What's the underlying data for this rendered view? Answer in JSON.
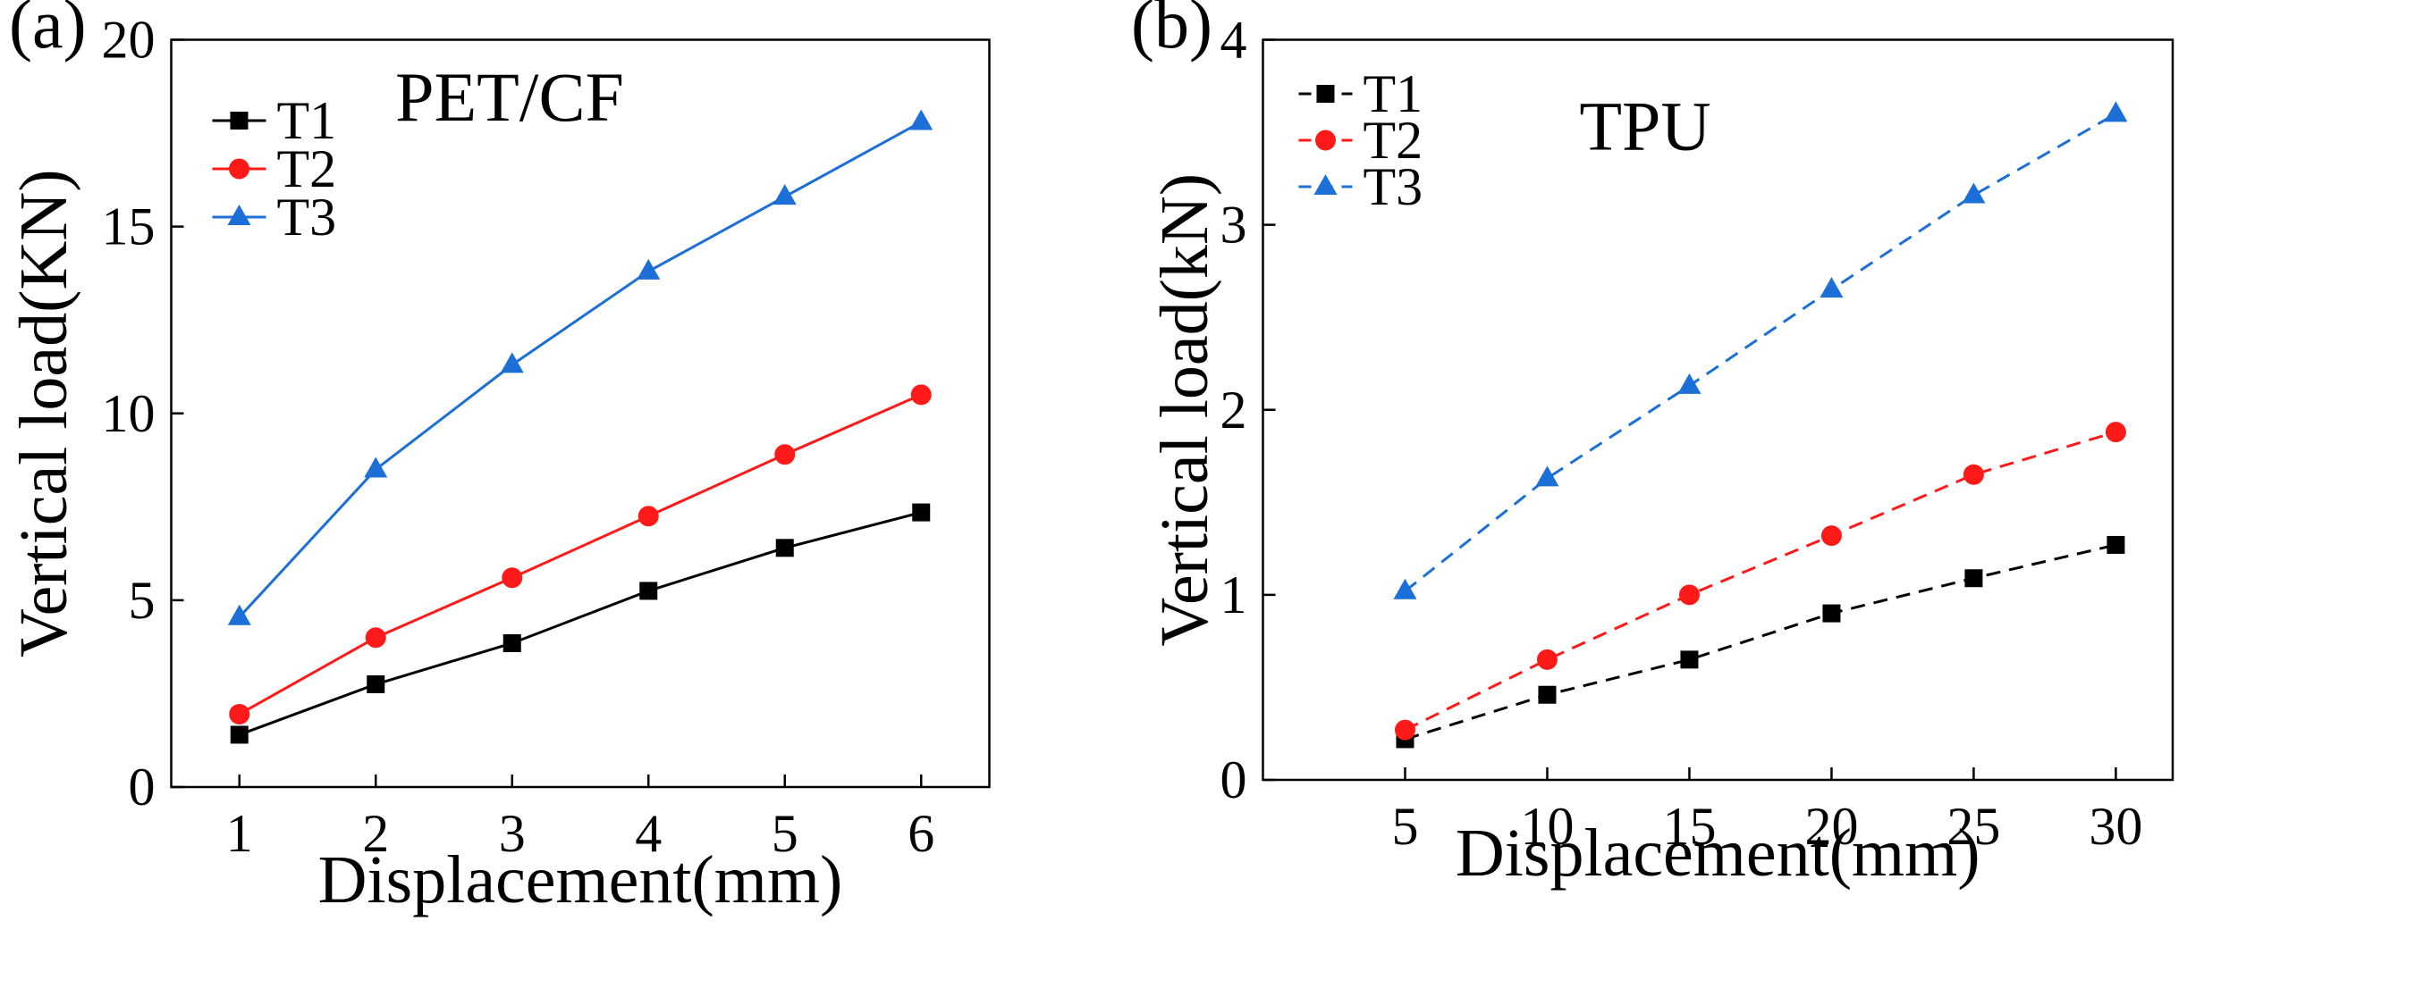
{
  "figure": {
    "panels": [
      "(a)",
      "(b)"
    ]
  },
  "chart_data": [
    {
      "type": "line",
      "panel_label": "(a)",
      "annotation": "PET/CF",
      "xlabel": "Displacement(mm)",
      "ylabel": "Vertical load(KN)",
      "xlim": [
        0.5,
        6.5
      ],
      "ylim": [
        0,
        20
      ],
      "xticks": [
        1,
        2,
        3,
        4,
        5,
        6
      ],
      "yticks": [
        0,
        5,
        10,
        15,
        20
      ],
      "x": [
        1,
        2,
        3,
        4,
        5,
        6
      ],
      "legend_position": "top-left",
      "series": [
        {
          "name": "T1",
          "color": "#000000",
          "marker": "square",
          "line": "solid",
          "values": [
            1.4,
            2.75,
            3.85,
            5.25,
            6.4,
            7.35
          ]
        },
        {
          "name": "T2",
          "color": "#ff1a1a",
          "marker": "circle",
          "line": "solid",
          "values": [
            1.95,
            4.0,
            5.6,
            7.25,
            8.9,
            10.5
          ]
        },
        {
          "name": "T3",
          "color": "#1c6fd6",
          "marker": "triangle",
          "line": "solid",
          "values": [
            4.55,
            8.5,
            11.3,
            13.8,
            15.8,
            17.8
          ]
        }
      ]
    },
    {
      "type": "line",
      "panel_label": "(b)",
      "annotation": "TPU",
      "xlabel": "Displacement(mm)",
      "ylabel": "Vertical load(kN)",
      "xlim": [
        0,
        32
      ],
      "ylim": [
        0,
        4
      ],
      "xticks": [
        5,
        10,
        15,
        20,
        25,
        30
      ],
      "yticks": [
        0,
        1,
        2,
        3,
        4
      ],
      "x": [
        5,
        10,
        15,
        20,
        25,
        30
      ],
      "legend_position": "top-left",
      "series": [
        {
          "name": "T1",
          "color": "#000000",
          "marker": "square",
          "line": "dashed",
          "values": [
            0.22,
            0.46,
            0.65,
            0.9,
            1.09,
            1.27
          ]
        },
        {
          "name": "T2",
          "color": "#ff1a1a",
          "marker": "circle",
          "line": "dashed",
          "values": [
            0.27,
            0.65,
            1.0,
            1.32,
            1.65,
            1.88
          ]
        },
        {
          "name": "T3",
          "color": "#1c6fd6",
          "marker": "triangle",
          "line": "dashed",
          "values": [
            1.02,
            1.63,
            2.13,
            2.65,
            3.16,
            3.6
          ]
        }
      ]
    }
  ]
}
